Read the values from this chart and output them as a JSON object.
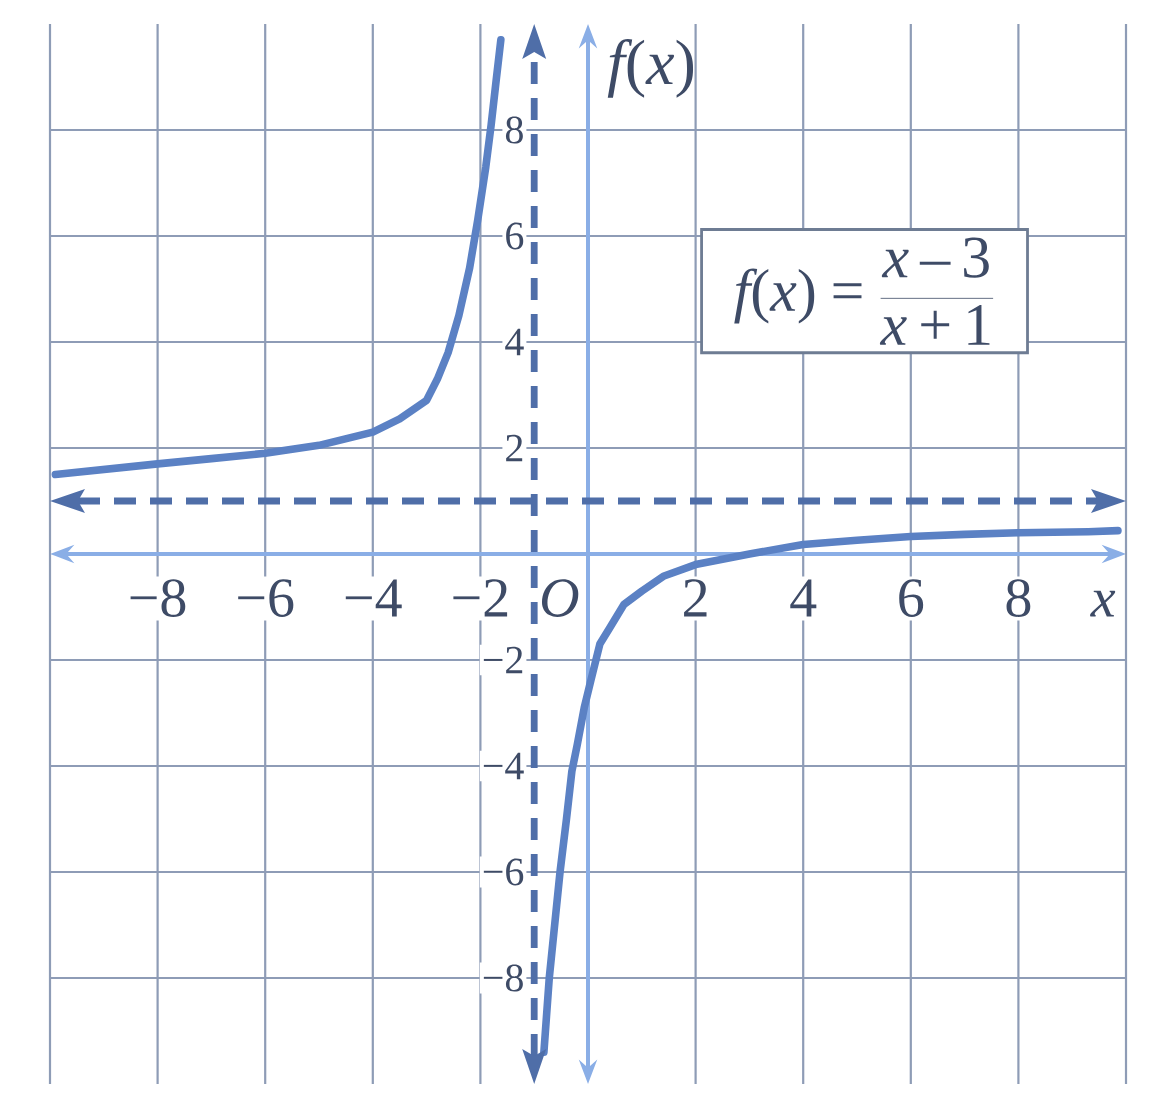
{
  "chart_data": {
    "type": "line",
    "xlabel": "x",
    "ylabel": "f(x)",
    "annotations": [
      "f(x) = \\frac{x-3}{x+1}",
      "O"
    ],
    "xlim": [
      -10,
      10
    ],
    "ylim": [
      -10,
      10
    ],
    "xticks": [
      {
        "value": -10,
        "label": null
      },
      {
        "value": -8,
        "label": "−8"
      },
      {
        "value": -6,
        "label": "−6"
      },
      {
        "value": -4,
        "label": "−4"
      },
      {
        "value": -2,
        "label": "−2"
      },
      2,
      4,
      6,
      8,
      {
        "value": 10,
        "label": null
      }
    ],
    "yticks": [
      {
        "value": -8,
        "label": "−8"
      },
      {
        "value": -6,
        "label": "−6"
      },
      {
        "value": -4,
        "label": "−4"
      },
      {
        "value": -2,
        "label": "−2"
      },
      2,
      4,
      6,
      8
    ],
    "grid": true,
    "series": [
      {
        "color": "#5b81c4",
        "x": [
          -9.9,
          -8,
          -7,
          -6,
          -5,
          -4,
          -3.5,
          -3,
          -2.8,
          -2.6,
          -2.4,
          -2.2,
          -2.05,
          -1.9,
          -1.8,
          -1.7,
          -1.62
        ],
        "values": [
          1.5,
          1.7,
          1.8,
          1.9,
          2.05,
          2.3,
          2.55,
          2.9,
          3.3,
          3.8,
          4.5,
          5.4,
          6.3,
          7.3,
          8.1,
          9.0,
          9.7
        ]
      },
      {
        "color": "#5b81c4",
        "x": [
          -0.82,
          -0.72,
          -0.6,
          -0.52,
          -0.4,
          -0.3,
          -0.2,
          -0.07,
          0.05,
          0.22,
          0.4,
          0.67,
          1,
          1.4,
          2,
          3,
          4,
          5,
          6,
          7,
          8,
          9.3,
          9.85
        ],
        "values": [
          -9.4,
          -8.0,
          -6.8,
          -6.0,
          -5.0,
          -4.1,
          -3.6,
          -2.9,
          -2.4,
          -1.7,
          -1.4,
          -0.95,
          -0.7,
          -0.42,
          -0.2,
          0.0,
          0.18,
          0.26,
          0.33,
          0.37,
          0.4,
          0.42,
          0.44
        ]
      }
    ],
    "ref_lines": [
      {
        "axis": "x",
        "value": -1,
        "color": "#4f6ea8",
        "line_style": "dashed"
      },
      {
        "axis": "y",
        "value": 1,
        "color": "#4f6ea8",
        "line_style": "dashed"
      }
    ]
  }
}
